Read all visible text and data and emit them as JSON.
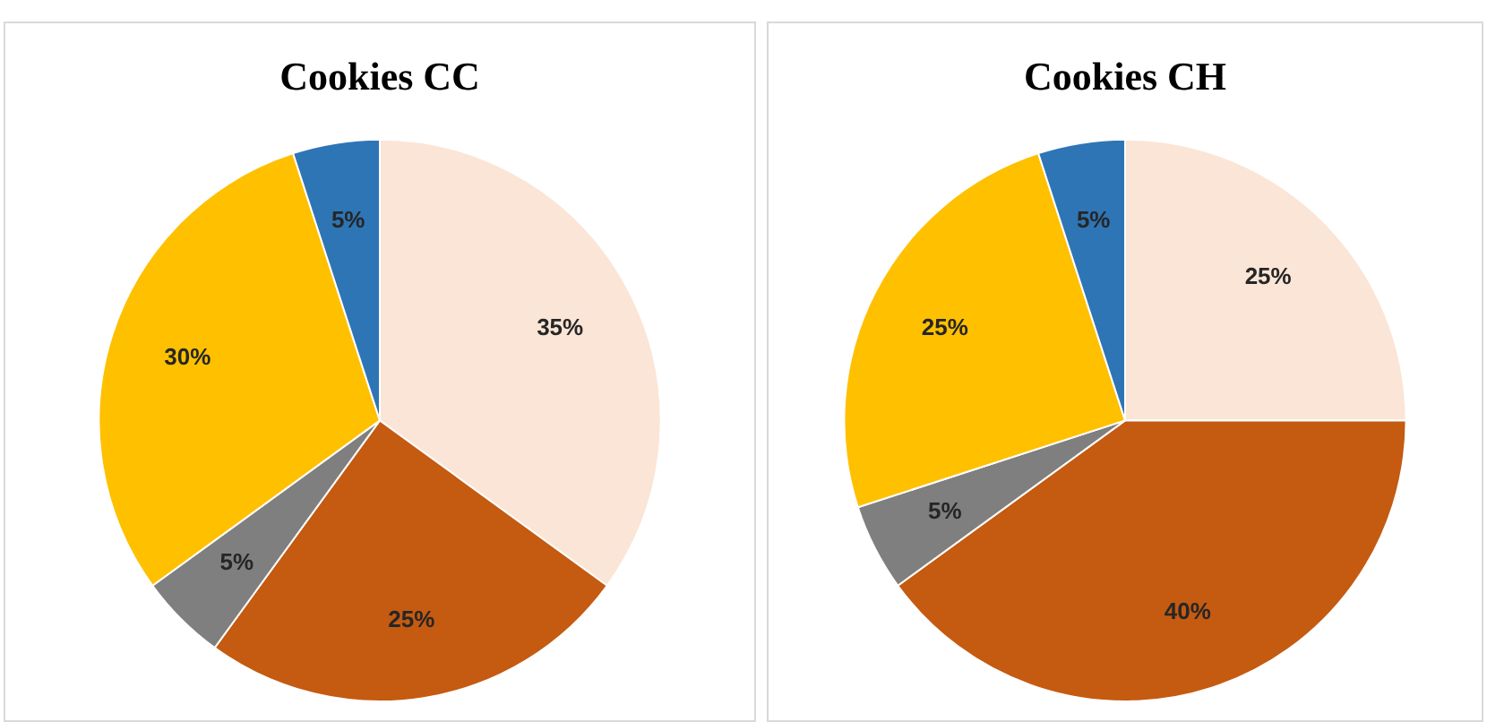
{
  "chart_data": [
    {
      "type": "pie",
      "title": "Cookies CC",
      "categories": [
        null,
        null,
        null,
        null,
        null
      ],
      "values": [
        35,
        25,
        5,
        30,
        5
      ],
      "colors": [
        "#fbe5d6",
        "#c55a11",
        "#7f7f7f",
        "#ffc000",
        "#2e75b6"
      ],
      "value_labels": [
        "35%",
        "25%",
        "5%",
        "30%",
        "5%"
      ],
      "legend": false
    },
    {
      "type": "pie",
      "title": "Cookies CH",
      "categories": [
        null,
        null,
        null,
        null,
        null
      ],
      "values": [
        25,
        40,
        5,
        25,
        5
      ],
      "colors": [
        "#fbe5d6",
        "#c55a11",
        "#7f7f7f",
        "#ffc000",
        "#2e75b6"
      ],
      "value_labels": [
        "25%",
        "40%",
        "5%",
        "25%",
        "5%"
      ],
      "legend": false
    }
  ]
}
